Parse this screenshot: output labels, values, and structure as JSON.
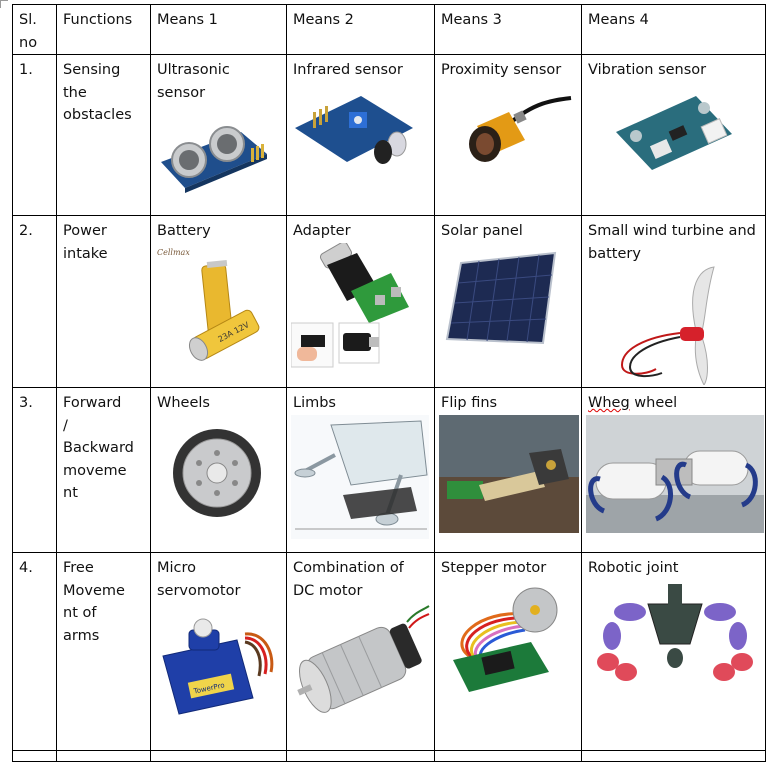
{
  "header": {
    "slno": "Sl. no",
    "functions": "Functions",
    "means1": "Means 1",
    "means2": "Means 2",
    "means3": "Means 3",
    "means4": "Means 4"
  },
  "rows": [
    {
      "no": "1.",
      "function": "Sensing the obstacles",
      "means": [
        "Ultrasonic sensor",
        "Infrared sensor",
        "Proximity sensor",
        "Vibration sensor"
      ]
    },
    {
      "no": "2.",
      "function": "Power intake",
      "means": [
        "Battery",
        "Adapter",
        "Solar panel",
        "Small wind turbine and battery"
      ]
    },
    {
      "no": "3.",
      "function": "Forward / Backward movement",
      "means_display": [
        "Wheels",
        "Limbs",
        "Flip fins"
      ],
      "whegA": "Wheg",
      "whegB": " wheel"
    },
    {
      "no": "4.",
      "function": "Free Movement of arms",
      "means": [
        "Micro servomotor",
        "Combination of DC motor",
        "Stepper motor",
        "Robotic joint"
      ]
    }
  ],
  "image_text": {
    "battery_label": "23A 12V",
    "servo_label": "TowerPro"
  },
  "colors": {
    "border": "#000000",
    "sensor_pcb": "#1f4e8c",
    "grove_pcb": "#2a6d7d",
    "solar": "#1d2a52",
    "servo": "#1f3fa8",
    "joint_red": "#e04a5a",
    "joint_purple": "#7c64c8"
  }
}
